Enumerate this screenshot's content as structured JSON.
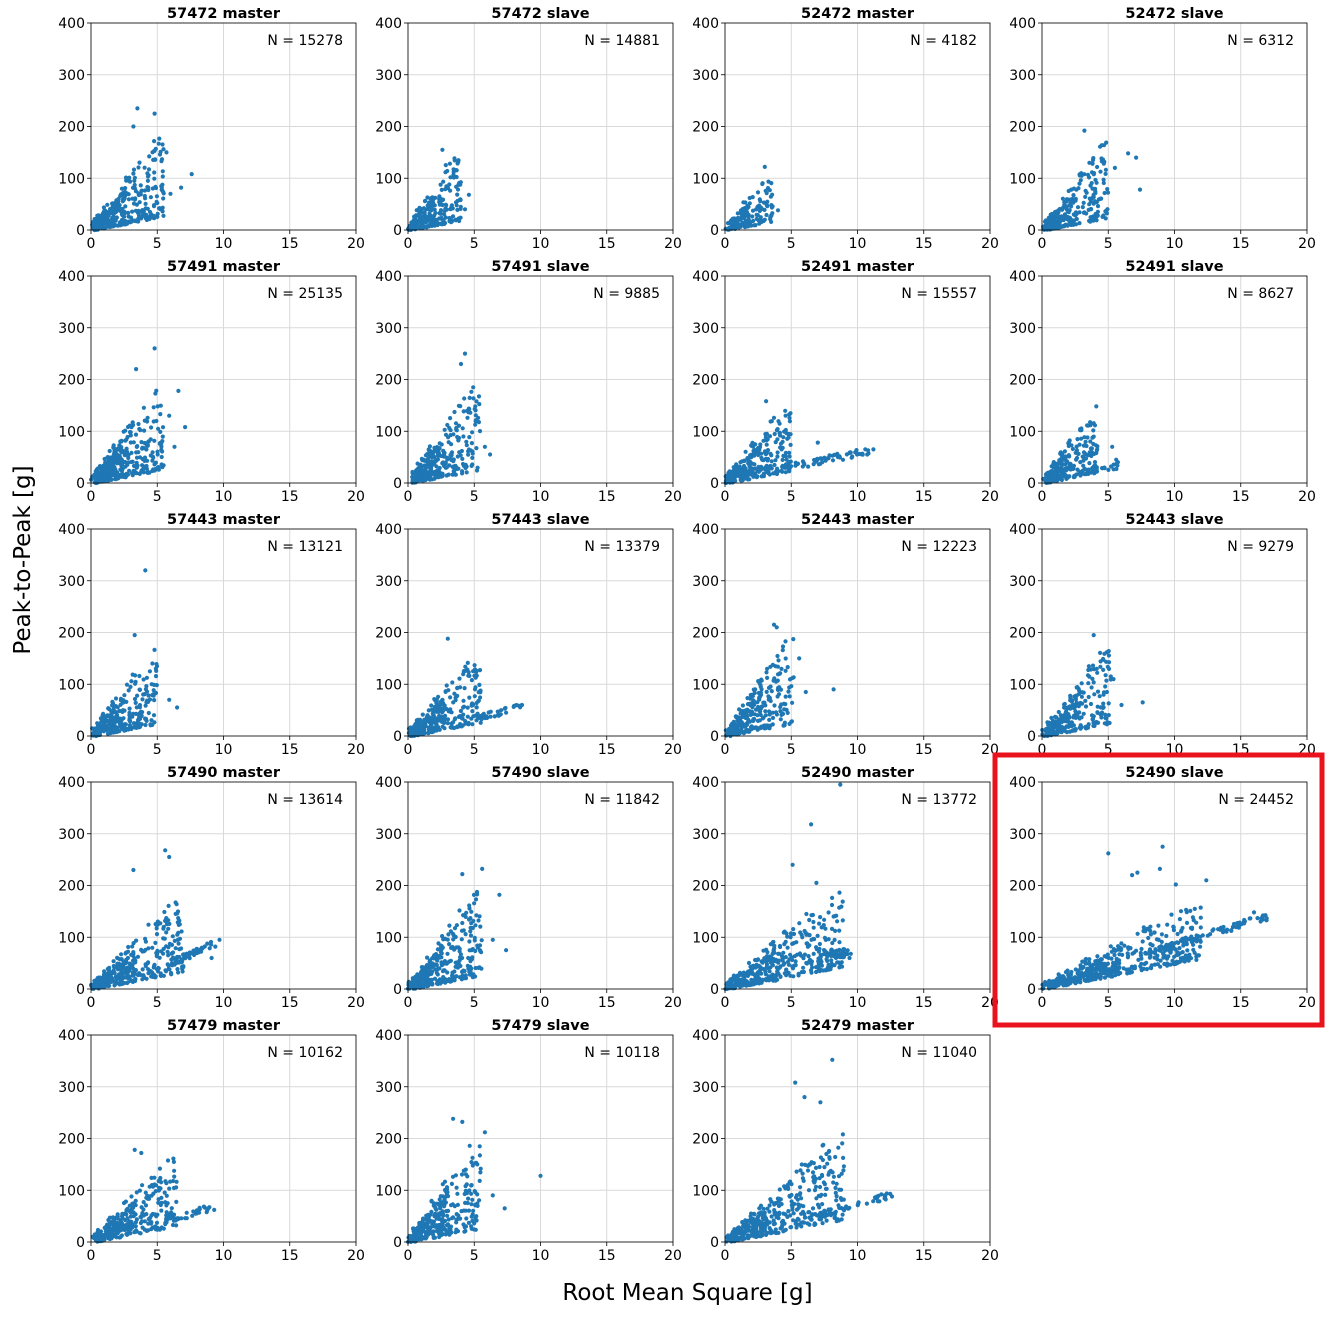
{
  "figure": {
    "ylabel": "Peak-to-Peak [g]",
    "xlabel": "Root Mean Square [g]",
    "highlight_color": "#e8131c",
    "marker_color": "#1f77b4",
    "highlighted_panel": "52490 slave"
  },
  "chart_data": [
    {
      "type": "scatter",
      "title": "57472 master",
      "n_label": "N = 15278",
      "xlim": [
        0,
        20
      ],
      "ylim": [
        0,
        400
      ],
      "xticks": [
        0,
        5,
        10,
        15,
        20
      ],
      "yticks": [
        0,
        100,
        200,
        300,
        400
      ],
      "grid": true,
      "cloud": {
        "xmax": 5.5,
        "slope": 34,
        "ymax": 190,
        "count": 230
      },
      "outliers": [
        [
          3.5,
          235
        ],
        [
          4.8,
          225
        ],
        [
          3.2,
          200
        ],
        [
          7.6,
          108
        ],
        [
          6.8,
          82
        ],
        [
          6.0,
          70
        ],
        [
          5.7,
          150
        ]
      ]
    },
    {
      "type": "scatter",
      "title": "57472 slave",
      "n_label": "N = 14881",
      "xlim": [
        0,
        20
      ],
      "ylim": [
        0,
        400
      ],
      "xticks": [
        0,
        5,
        10,
        15,
        20
      ],
      "yticks": [
        0,
        100,
        200,
        300,
        400
      ],
      "grid": true,
      "cloud": {
        "xmax": 4.0,
        "slope": 40,
        "ymax": 140,
        "count": 170
      },
      "outliers": [
        [
          2.6,
          155
        ],
        [
          4.6,
          68
        ],
        [
          4.3,
          40
        ]
      ]
    },
    {
      "type": "scatter",
      "title": "52472 master",
      "n_label": "N = 4182",
      "xlim": [
        0,
        20
      ],
      "ylim": [
        0,
        400
      ],
      "xticks": [
        0,
        5,
        10,
        15,
        20
      ],
      "yticks": [
        0,
        100,
        200,
        300,
        400
      ],
      "grid": true,
      "cloud": {
        "xmax": 3.6,
        "slope": 30,
        "ymax": 95,
        "count": 110
      },
      "outliers": [
        [
          3.0,
          122
        ],
        [
          4.0,
          38
        ]
      ]
    },
    {
      "type": "scatter",
      "title": "52472 slave",
      "n_label": "N = 6312",
      "xlim": [
        0,
        20
      ],
      "ylim": [
        0,
        400
      ],
      "xticks": [
        0,
        5,
        10,
        15,
        20
      ],
      "yticks": [
        0,
        100,
        200,
        300,
        400
      ],
      "grid": true,
      "cloud": {
        "xmax": 5.0,
        "slope": 34,
        "ymax": 175,
        "count": 180
      },
      "outliers": [
        [
          3.2,
          192
        ],
        [
          6.5,
          148
        ],
        [
          7.1,
          140
        ],
        [
          7.4,
          78
        ],
        [
          5.5,
          120
        ]
      ]
    },
    {
      "type": "scatter",
      "title": "57491 master",
      "n_label": "N = 25135",
      "xlim": [
        0,
        20
      ],
      "ylim": [
        0,
        400
      ],
      "xticks": [
        0,
        5,
        10,
        15,
        20
      ],
      "yticks": [
        0,
        100,
        200,
        300,
        400
      ],
      "grid": true,
      "cloud": {
        "xmax": 5.5,
        "slope": 36,
        "ymax": 190,
        "count": 240
      },
      "outliers": [
        [
          4.8,
          260
        ],
        [
          3.4,
          220
        ],
        [
          6.6,
          178
        ],
        [
          7.1,
          108
        ],
        [
          6.3,
          70
        ],
        [
          5.9,
          130
        ]
      ]
    },
    {
      "type": "scatter",
      "title": "57491 slave",
      "n_label": "N = 9885",
      "xlim": [
        0,
        20
      ],
      "ylim": [
        0,
        400
      ],
      "xticks": [
        0,
        5,
        10,
        15,
        20
      ],
      "yticks": [
        0,
        100,
        200,
        300,
        400
      ],
      "grid": true,
      "cloud": {
        "xmax": 5.5,
        "slope": 36,
        "ymax": 215,
        "count": 210
      },
      "outliers": [
        [
          4.3,
          250
        ],
        [
          4.0,
          230
        ],
        [
          6.2,
          55
        ],
        [
          5.8,
          70
        ]
      ]
    },
    {
      "type": "scatter",
      "title": "52491 master",
      "n_label": "N = 15557",
      "xlim": [
        0,
        20
      ],
      "ylim": [
        0,
        400
      ],
      "xticks": [
        0,
        5,
        10,
        15,
        20
      ],
      "yticks": [
        0,
        100,
        200,
        300,
        400
      ],
      "grid": true,
      "cloud": {
        "xmax": 5.0,
        "slope": 32,
        "ymax": 140,
        "count": 200
      },
      "tail": {
        "x0": 4.5,
        "x1": 11.0,
        "y0": 30,
        "y1": 62,
        "count": 60
      },
      "outliers": [
        [
          3.1,
          158
        ],
        [
          7.0,
          78
        ],
        [
          9.4,
          58
        ],
        [
          10.8,
          63
        ],
        [
          11.2,
          65
        ]
      ]
    },
    {
      "type": "scatter",
      "title": "52491 slave",
      "n_label": "N = 8627",
      "xlim": [
        0,
        20
      ],
      "ylim": [
        0,
        400
      ],
      "xticks": [
        0,
        5,
        10,
        15,
        20
      ],
      "yticks": [
        0,
        100,
        200,
        300,
        400
      ],
      "grid": true,
      "cloud": {
        "xmax": 4.2,
        "slope": 34,
        "ymax": 120,
        "count": 150
      },
      "tail": {
        "x0": 3.8,
        "x1": 5.8,
        "y0": 25,
        "y1": 35,
        "count": 20
      },
      "outliers": [
        [
          4.1,
          148
        ],
        [
          5.3,
          70
        ],
        [
          5.6,
          45
        ]
      ]
    },
    {
      "type": "scatter",
      "title": "57443 master",
      "n_label": "N = 13121",
      "xlim": [
        0,
        20
      ],
      "ylim": [
        0,
        400
      ],
      "xticks": [
        0,
        5,
        10,
        15,
        20
      ],
      "yticks": [
        0,
        100,
        200,
        300,
        400
      ],
      "grid": true,
      "cloud": {
        "xmax": 5.0,
        "slope": 34,
        "ymax": 185,
        "count": 190
      },
      "outliers": [
        [
          4.1,
          320
        ],
        [
          3.3,
          195
        ],
        [
          6.5,
          55
        ],
        [
          5.9,
          70
        ],
        [
          4.9,
          130
        ]
      ]
    },
    {
      "type": "scatter",
      "title": "57443 slave",
      "n_label": "N = 13379",
      "xlim": [
        0,
        20
      ],
      "ylim": [
        0,
        400
      ],
      "xticks": [
        0,
        5,
        10,
        15,
        20
      ],
      "yticks": [
        0,
        100,
        200,
        300,
        400
      ],
      "grid": true,
      "cloud": {
        "xmax": 5.5,
        "slope": 30,
        "ymax": 150,
        "count": 210
      },
      "tail": {
        "x0": 5.0,
        "x1": 8.5,
        "y0": 35,
        "y1": 55,
        "count": 30
      },
      "outliers": [
        [
          3.0,
          188
        ],
        [
          8.6,
          60
        ],
        [
          8.0,
          58
        ],
        [
          7.4,
          45
        ]
      ]
    },
    {
      "type": "scatter",
      "title": "52443 master",
      "n_label": "N = 12223",
      "xlim": [
        0,
        20
      ],
      "ylim": [
        0,
        400
      ],
      "xticks": [
        0,
        5,
        10,
        15,
        20
      ],
      "yticks": [
        0,
        100,
        200,
        300,
        400
      ],
      "grid": true,
      "cloud": {
        "xmax": 5.2,
        "slope": 38,
        "ymax": 195,
        "count": 200
      },
      "outliers": [
        [
          3.7,
          215
        ],
        [
          3.9,
          210
        ],
        [
          8.2,
          90
        ],
        [
          6.1,
          85
        ],
        [
          5.6,
          150
        ]
      ]
    },
    {
      "type": "scatter",
      "title": "52443 slave",
      "n_label": "N = 9279",
      "xlim": [
        0,
        20
      ],
      "ylim": [
        0,
        400
      ],
      "xticks": [
        0,
        5,
        10,
        15,
        20
      ],
      "yticks": [
        0,
        100,
        200,
        300,
        400
      ],
      "grid": true,
      "cloud": {
        "xmax": 5.2,
        "slope": 36,
        "ymax": 180,
        "count": 180
      },
      "outliers": [
        [
          3.9,
          195
        ],
        [
          7.6,
          65
        ],
        [
          6.0,
          60
        ],
        [
          5.4,
          110
        ]
      ]
    },
    {
      "type": "scatter",
      "title": "57490 master",
      "n_label": "N = 13614",
      "xlim": [
        0,
        20
      ],
      "ylim": [
        0,
        400
      ],
      "xticks": [
        0,
        5,
        10,
        15,
        20
      ],
      "yticks": [
        0,
        100,
        200,
        300,
        400
      ],
      "grid": true,
      "cloud": {
        "xmax": 7.0,
        "slope": 26,
        "ymax": 170,
        "count": 260
      },
      "tail": {
        "x0": 6.0,
        "x1": 9.5,
        "y0": 50,
        "y1": 90,
        "count": 40
      },
      "outliers": [
        [
          5.6,
          268
        ],
        [
          5.9,
          255
        ],
        [
          3.2,
          230
        ],
        [
          9.7,
          95
        ],
        [
          9.1,
          60
        ]
      ]
    },
    {
      "type": "scatter",
      "title": "57490 slave",
      "n_label": "N = 11842",
      "xlim": [
        0,
        20
      ],
      "ylim": [
        0,
        400
      ],
      "xticks": [
        0,
        5,
        10,
        15,
        20
      ],
      "yticks": [
        0,
        100,
        200,
        300,
        400
      ],
      "grid": true,
      "cloud": {
        "xmax": 5.6,
        "slope": 36,
        "ymax": 190,
        "count": 220
      },
      "outliers": [
        [
          5.6,
          232
        ],
        [
          4.1,
          222
        ],
        [
          6.9,
          182
        ],
        [
          7.4,
          75
        ],
        [
          6.4,
          95
        ]
      ]
    },
    {
      "type": "scatter",
      "title": "52490 master",
      "n_label": "N = 13772",
      "xlim": [
        0,
        20
      ],
      "ylim": [
        0,
        400
      ],
      "xticks": [
        0,
        5,
        10,
        15,
        20
      ],
      "yticks": [
        0,
        100,
        200,
        300,
        400
      ],
      "grid": true,
      "cloud": {
        "xmax": 9.0,
        "slope": 22,
        "ymax": 200,
        "count": 270
      },
      "tail": {
        "x0": 6.0,
        "x1": 9.5,
        "y0": 50,
        "y1": 75,
        "count": 40
      },
      "outliers": [
        [
          8.7,
          395
        ],
        [
          6.5,
          318
        ],
        [
          5.1,
          240
        ],
        [
          6.9,
          205
        ],
        [
          9.4,
          60
        ],
        [
          8.2,
          140
        ]
      ]
    },
    {
      "type": "scatter",
      "title": "52490 slave",
      "n_label": "N = 24452",
      "xlim": [
        0,
        20
      ],
      "ylim": [
        0,
        400
      ],
      "xticks": [
        0,
        5,
        10,
        15,
        20
      ],
      "yticks": [
        0,
        100,
        200,
        300,
        400
      ],
      "grid": true,
      "cloud": {
        "xmax": 12.0,
        "slope": 14,
        "ymax": 190,
        "count": 330
      },
      "tail": {
        "x0": 8.0,
        "x1": 17.0,
        "y0": 70,
        "y1": 140,
        "count": 90
      },
      "outliers": [
        [
          9.1,
          275
        ],
        [
          5.0,
          262
        ],
        [
          8.9,
          232
        ],
        [
          7.2,
          225
        ],
        [
          12.4,
          210
        ],
        [
          6.8,
          220
        ],
        [
          16.0,
          148
        ],
        [
          10.1,
          202
        ]
      ]
    },
    {
      "type": "scatter",
      "title": "57479 master",
      "n_label": "N = 10162",
      "xlim": [
        0,
        20
      ],
      "ylim": [
        0,
        400
      ],
      "xticks": [
        0,
        5,
        10,
        15,
        20
      ],
      "yticks": [
        0,
        100,
        200,
        300,
        400
      ],
      "grid": true,
      "cloud": {
        "xmax": 6.5,
        "slope": 26,
        "ymax": 165,
        "count": 220
      },
      "tail": {
        "x0": 5.5,
        "x1": 9.0,
        "y0": 40,
        "y1": 65,
        "count": 35
      },
      "outliers": [
        [
          3.3,
          178
        ],
        [
          3.8,
          172
        ],
        [
          9.3,
          62
        ],
        [
          8.2,
          66
        ]
      ]
    },
    {
      "type": "scatter",
      "title": "57479 slave",
      "n_label": "N = 10118",
      "xlim": [
        0,
        20
      ],
      "ylim": [
        0,
        400
      ],
      "xticks": [
        0,
        5,
        10,
        15,
        20
      ],
      "yticks": [
        0,
        100,
        200,
        300,
        400
      ],
      "grid": true,
      "cloud": {
        "xmax": 5.5,
        "slope": 38,
        "ymax": 200,
        "count": 210
      },
      "outliers": [
        [
          3.4,
          238
        ],
        [
          4.1,
          232
        ],
        [
          5.8,
          212
        ],
        [
          10.0,
          128
        ],
        [
          7.3,
          65
        ],
        [
          6.4,
          90
        ]
      ]
    },
    {
      "type": "scatter",
      "title": "52479 master",
      "n_label": "N = 11040",
      "xlim": [
        0,
        20
      ],
      "ylim": [
        0,
        400
      ],
      "xticks": [
        0,
        5,
        10,
        15,
        20
      ],
      "yticks": [
        0,
        100,
        200,
        300,
        400
      ],
      "grid": true,
      "cloud": {
        "xmax": 9.0,
        "slope": 24,
        "ymax": 240,
        "count": 290
      },
      "tail": {
        "x0": 7.0,
        "x1": 12.5,
        "y0": 50,
        "y1": 90,
        "count": 40
      },
      "outliers": [
        [
          8.1,
          352
        ],
        [
          5.3,
          308
        ],
        [
          6.0,
          280
        ],
        [
          12.6,
          88
        ],
        [
          11.8,
          92
        ],
        [
          7.2,
          270
        ]
      ]
    }
  ]
}
